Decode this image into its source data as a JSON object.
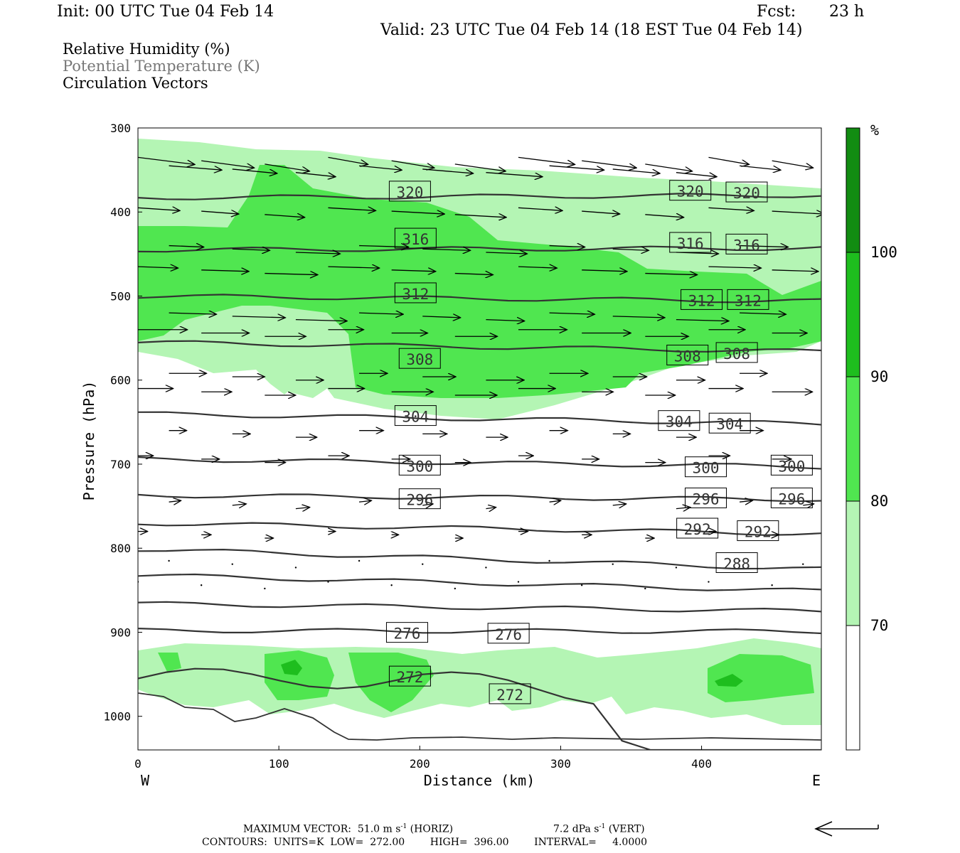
{
  "header": {
    "init": "Init: 00 UTC Tue 04 Feb 14",
    "fcst_label": "Fcst:",
    "fcst_value": "23 h",
    "valid": "Valid: 23 UTC Tue 04 Feb 14 (18 EST Tue 04 Feb 14)"
  },
  "legend": {
    "line1": "Relative Humidity (%)",
    "line2": "Potential Temperature (K)",
    "line3": "Circulation Vectors"
  },
  "chart_data": {
    "type": "cross-section",
    "xlabel": "Distance (km)",
    "ylabel": "Pressure (hPa)",
    "x_ticks": [
      0,
      100,
      200,
      300,
      400
    ],
    "y_ticks": [
      300,
      400,
      500,
      600,
      700,
      800,
      900,
      1000
    ],
    "xlim": [
      0,
      485
    ],
    "ylim": [
      300,
      1040
    ],
    "y_inverted": true,
    "x_end_labels": {
      "left": "W",
      "right": "E"
    },
    "colorbar": {
      "unit": "%",
      "levels": [
        70,
        80,
        90,
        100
      ],
      "colors": [
        "#ffffff",
        "#b4f5b4",
        "#50e650",
        "#1ebe1e",
        "#128c12"
      ]
    },
    "theta_contours": [
      {
        "level": 320,
        "p_west": 383,
        "p_east": 380,
        "labels": [
          {
            "x": 193,
            "p": 376
          },
          {
            "x": 392,
            "p": 375
          },
          {
            "x": 432,
            "p": 377
          }
        ]
      },
      {
        "level": 316,
        "p_west": 445,
        "p_east": 443,
        "labels": [
          {
            "x": 197,
            "p": 432
          },
          {
            "x": 392,
            "p": 437
          },
          {
            "x": 432,
            "p": 439
          }
        ]
      },
      {
        "level": 312,
        "p_west": 500,
        "p_east": 506,
        "labels": [
          {
            "x": 197,
            "p": 497
          },
          {
            "x": 400,
            "p": 505
          },
          {
            "x": 433,
            "p": 505
          }
        ]
      },
      {
        "level": 308,
        "p_west": 555,
        "p_east": 566,
        "labels": [
          {
            "x": 200,
            "p": 575
          },
          {
            "x": 390,
            "p": 571
          },
          {
            "x": 425,
            "p": 568
          }
        ]
      },
      {
        "level": 304,
        "p_west": 640,
        "p_east": 652,
        "labels": [
          {
            "x": 197,
            "p": 643
          },
          {
            "x": 384,
            "p": 649
          },
          {
            "x": 420,
            "p": 652
          }
        ]
      },
      {
        "level": 300,
        "p_west": 694,
        "p_east": 703,
        "labels": [
          {
            "x": 200,
            "p": 702
          },
          {
            "x": 403,
            "p": 704
          },
          {
            "x": 464,
            "p": 702
          }
        ]
      },
      {
        "level": 296,
        "p_west": 737,
        "p_east": 742,
        "labels": [
          {
            "x": 200,
            "p": 742
          },
          {
            "x": 403,
            "p": 741
          },
          {
            "x": 464,
            "p": 741
          }
        ]
      },
      {
        "level": 292,
        "p_west": 770,
        "p_east": 783,
        "labels": [
          {
            "x": 397,
            "p": 777
          },
          {
            "x": 440,
            "p": 780
          }
        ]
      },
      {
        "level": 288,
        "p_west": 801,
        "p_east": 825,
        "labels": [
          {
            "x": 425,
            "p": 818
          }
        ]
      },
      {
        "level": 284,
        "p_west": 832,
        "p_east": 851,
        "labels": []
      },
      {
        "level": 280,
        "p_west": 866,
        "p_east": 875,
        "labels": []
      },
      {
        "level": 276,
        "p_west": 898,
        "p_east": 899,
        "labels": [
          {
            "x": 191,
            "p": 901
          },
          {
            "x": 263,
            "p": 902
          }
        ]
      },
      {
        "level": 272,
        "p_west": 955,
        "p_east": 1040,
        "labels": [
          {
            "x": 193,
            "p": 953
          },
          {
            "x": 264,
            "p": 974
          }
        ]
      }
    ],
    "label_texts": [
      "320",
      "316",
      "312",
      "308",
      "304",
      "300",
      "296",
      "292",
      "288",
      "276",
      "272"
    ],
    "footer": {
      "max_vector": "MAXIMUM VECTOR:  51.0 m s",
      "max_vector_unit_horiz": "(HORIZ)",
      "max_vector_vert": "7.2 dPa s",
      "max_vector_unit_vert": "(VERT)",
      "superscript": "-1",
      "contours": "CONTOURS:  UNITS=K  LOW=  272.00        HIGH=  396.00        INTERVAL=     4.0000"
    }
  }
}
